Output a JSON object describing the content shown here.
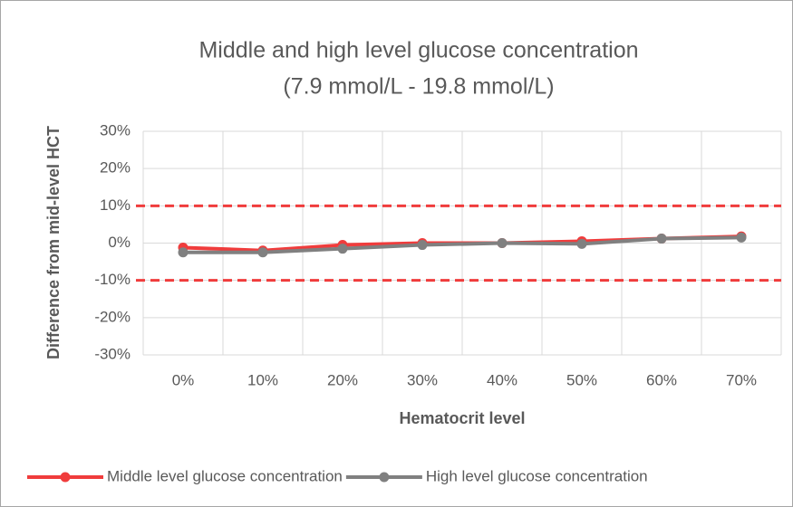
{
  "chart_data": {
    "type": "line",
    "title": "Middle and high level glucose concentration",
    "subtitle": "(7.9 mmol/L - 19.8 mmol/L)",
    "x_label": "Hematocrit level",
    "y_label": "Difference from mid-level HCT",
    "categories": [
      "0%",
      "10%",
      "20%",
      "30%",
      "40%",
      "50%",
      "60%",
      "70%"
    ],
    "series": [
      {
        "name": "Middle level glucose concentration",
        "color": "#f03c3c",
        "values": [
          -1.2,
          -2,
          -0.5,
          0,
          0,
          0.5,
          1.2,
          1.8
        ]
      },
      {
        "name": "High level glucose concentration",
        "color": "#808080",
        "values": [
          -2.5,
          -2.5,
          -1.5,
          -0.5,
          0,
          -0.2,
          1.2,
          1.5
        ]
      }
    ],
    "ylim": [
      -30,
      30
    ],
    "yticks": [
      {
        "value": -30,
        "label": "-30%"
      },
      {
        "value": -20,
        "label": "-20%"
      },
      {
        "value": -10,
        "label": "-10%"
      },
      {
        "value": 0,
        "label": "0%"
      },
      {
        "value": 10,
        "label": "10%"
      },
      {
        "value": 20,
        "label": "20%"
      },
      {
        "value": 30,
        "label": "30%"
      }
    ],
    "reference_lines": [
      10,
      -10
    ],
    "reference_color": "#f03c3c",
    "grid": true,
    "legend": "bottom"
  }
}
